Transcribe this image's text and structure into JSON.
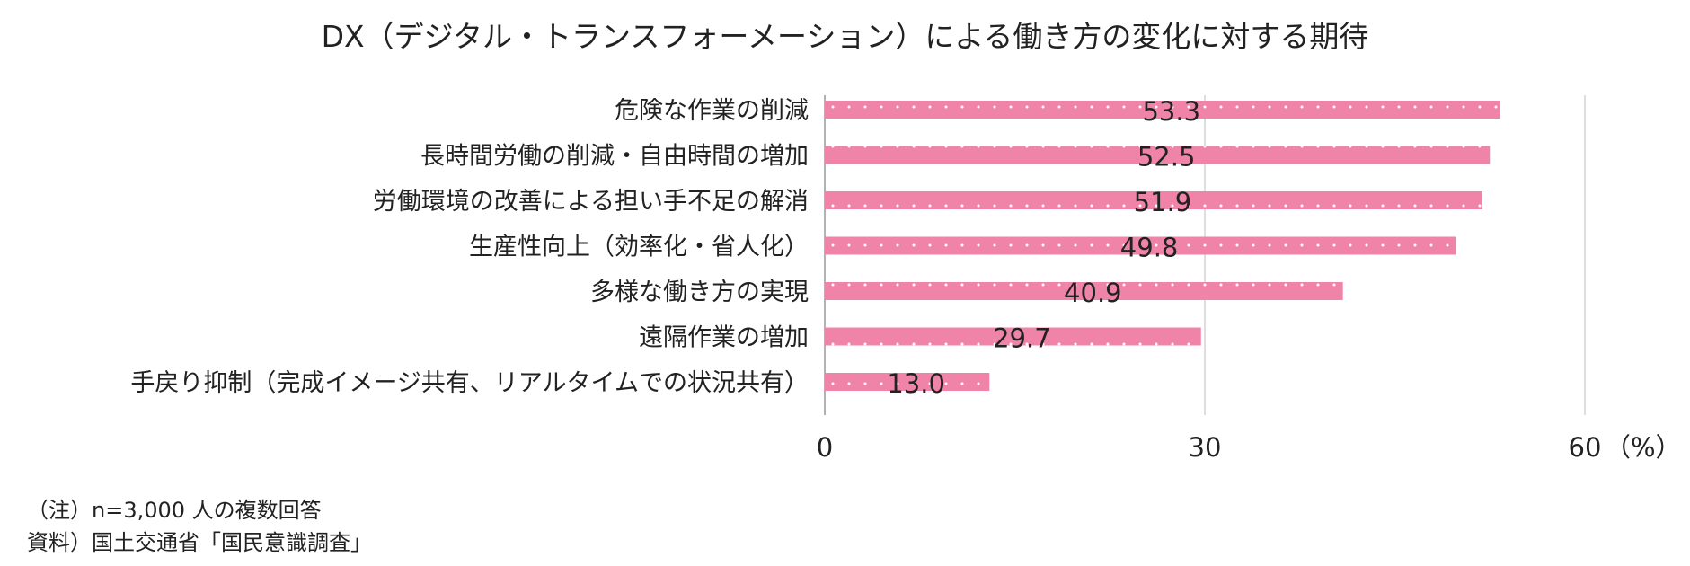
{
  "chart_data": {
    "type": "bar",
    "orientation": "horizontal",
    "title": "DX（デジタル・トランスフォーメーション）による働き方の変化に対する期待",
    "categories": [
      "危険な作業の削減",
      "長時間労働の削減・自由時間の増加",
      "労働環境の改善による担い手不足の解消",
      "生産性向上（効率化・省人化）",
      "多様な働き方の実現",
      "遠隔作業の増加",
      "手戻り抑制（完成イメージ共有、リアルタイムでの状況共有）"
    ],
    "values": [
      53.3,
      52.5,
      51.9,
      49.8,
      40.9,
      29.7,
      13.0
    ],
    "value_labels": [
      "53.3",
      "52.5",
      "51.9",
      "49.8",
      "40.9",
      "29.7",
      "13.0"
    ],
    "xlim": [
      0,
      60
    ],
    "xticks": [
      {
        "value": 0,
        "label": "0"
      },
      {
        "value": 30,
        "label": "30"
      },
      {
        "value": 60,
        "label": "60"
      }
    ],
    "xunit": "（%）",
    "grid": true,
    "bar_color": "#f083a8",
    "dot_color": "#ffffff"
  },
  "notes": {
    "note1": "（注）n=3,000 人の複数回答",
    "source": "資料）国土交通省「国民意識調査」"
  }
}
